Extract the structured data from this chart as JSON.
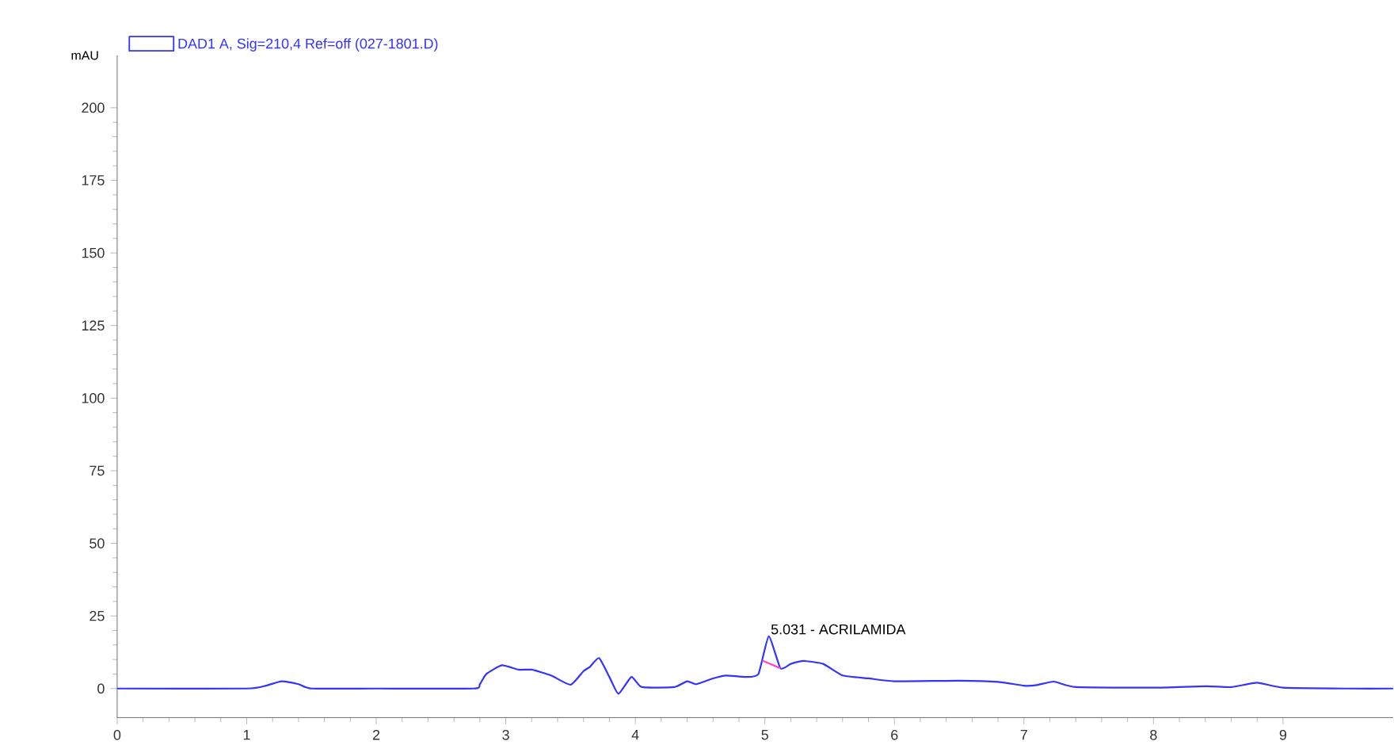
{
  "chart_data": {
    "type": "line",
    "ylabel": "mAU",
    "legend": "top left",
    "xlim": [
      0,
      9.85
    ],
    "ylim": [
      -10,
      218
    ],
    "xticks": [
      0,
      1,
      2,
      3,
      4,
      5,
      6,
      7,
      8,
      9
    ],
    "yticks": [
      0,
      25,
      50,
      75,
      100,
      125,
      150,
      175,
      200
    ],
    "x": [
      0,
      1.0,
      1.15,
      1.27,
      1.4,
      1.5,
      2.0,
      2.75,
      2.8,
      2.85,
      2.97,
      3.1,
      3.2,
      3.35,
      3.5,
      3.6,
      3.65,
      3.72,
      3.8,
      3.87,
      3.97,
      4.05,
      4.3,
      4.4,
      4.47,
      4.6,
      4.7,
      4.85,
      4.95,
      5.03,
      5.12,
      5.2,
      5.3,
      5.45,
      5.6,
      5.8,
      6.0,
      6.5,
      6.8,
      7.0,
      7.1,
      7.23,
      7.4,
      8.0,
      8.4,
      8.6,
      8.8,
      9.0,
      9.5,
      9.85
    ],
    "series": [
      {
        "name": "DAD1 A, Sig=210,4 Ref=off (027-1801.D)",
        "color": "#3333ff",
        "values": [
          0,
          0,
          1,
          2.5,
          1.5,
          0,
          0,
          0,
          1.5,
          5,
          8,
          6.5,
          6.5,
          4.5,
          1.3,
          6,
          7.5,
          10.5,
          4,
          -1.8,
          4,
          0.5,
          0.5,
          2.5,
          1.5,
          3.5,
          4.5,
          4,
          5,
          18,
          7,
          8.5,
          9.5,
          8.5,
          4.5,
          3.5,
          2.5,
          2.7,
          2.3,
          1,
          1.2,
          2.4,
          0.5,
          0.3,
          0.8,
          0.5,
          2,
          0.3,
          0,
          0
        ]
      },
      {
        "color": "#ff44cc",
        "x": [
          4.98,
          5.12
        ],
        "values": [
          9.6,
          7
        ]
      }
    ],
    "annotations": [
      {
        "text": "5.031 -  ACRILAMIDA",
        "x": 5.031,
        "y": 18
      }
    ]
  }
}
